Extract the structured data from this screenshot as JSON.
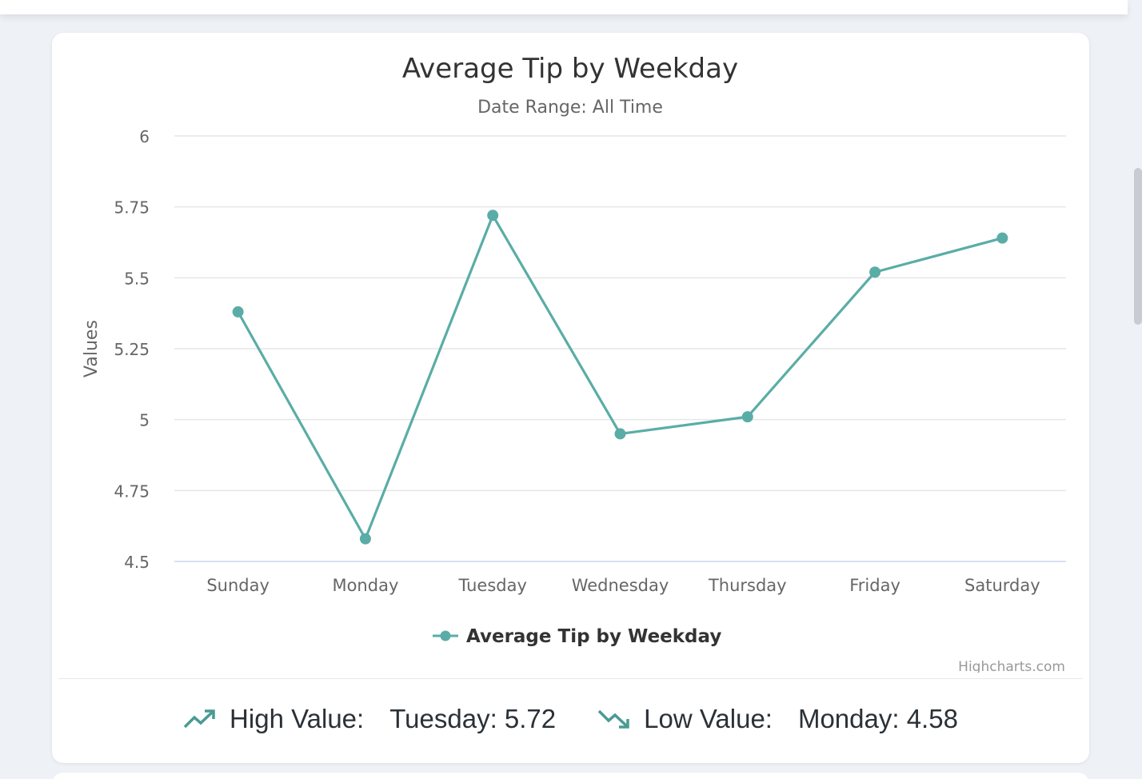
{
  "chart_data": {
    "type": "line",
    "title": "Average Tip by Weekday",
    "subtitle": "Date Range: All Time",
    "ylabel": "Values",
    "xlabel": "",
    "categories": [
      "Sunday",
      "Monday",
      "Tuesday",
      "Wednesday",
      "Thursday",
      "Friday",
      "Saturday"
    ],
    "series": [
      {
        "name": "Average Tip by Weekday",
        "values": [
          5.38,
          4.58,
          5.72,
          4.95,
          5.01,
          5.52,
          5.64
        ]
      }
    ],
    "ylim": [
      4.5,
      6
    ],
    "yticks": [
      "4.5",
      "4.75",
      "5",
      "5.25",
      "5.5",
      "5.75",
      "6"
    ],
    "grid": true,
    "legend": "bottom-center",
    "credits": "Highcharts.com",
    "color": "#5aada6"
  },
  "stats": {
    "high_label": "High Value:",
    "high_value": "Tuesday: 5.72",
    "low_label": "Low Value:",
    "low_value": "Monday: 4.58",
    "high_icon": "trending-up-icon",
    "low_icon": "trending-down-icon"
  }
}
